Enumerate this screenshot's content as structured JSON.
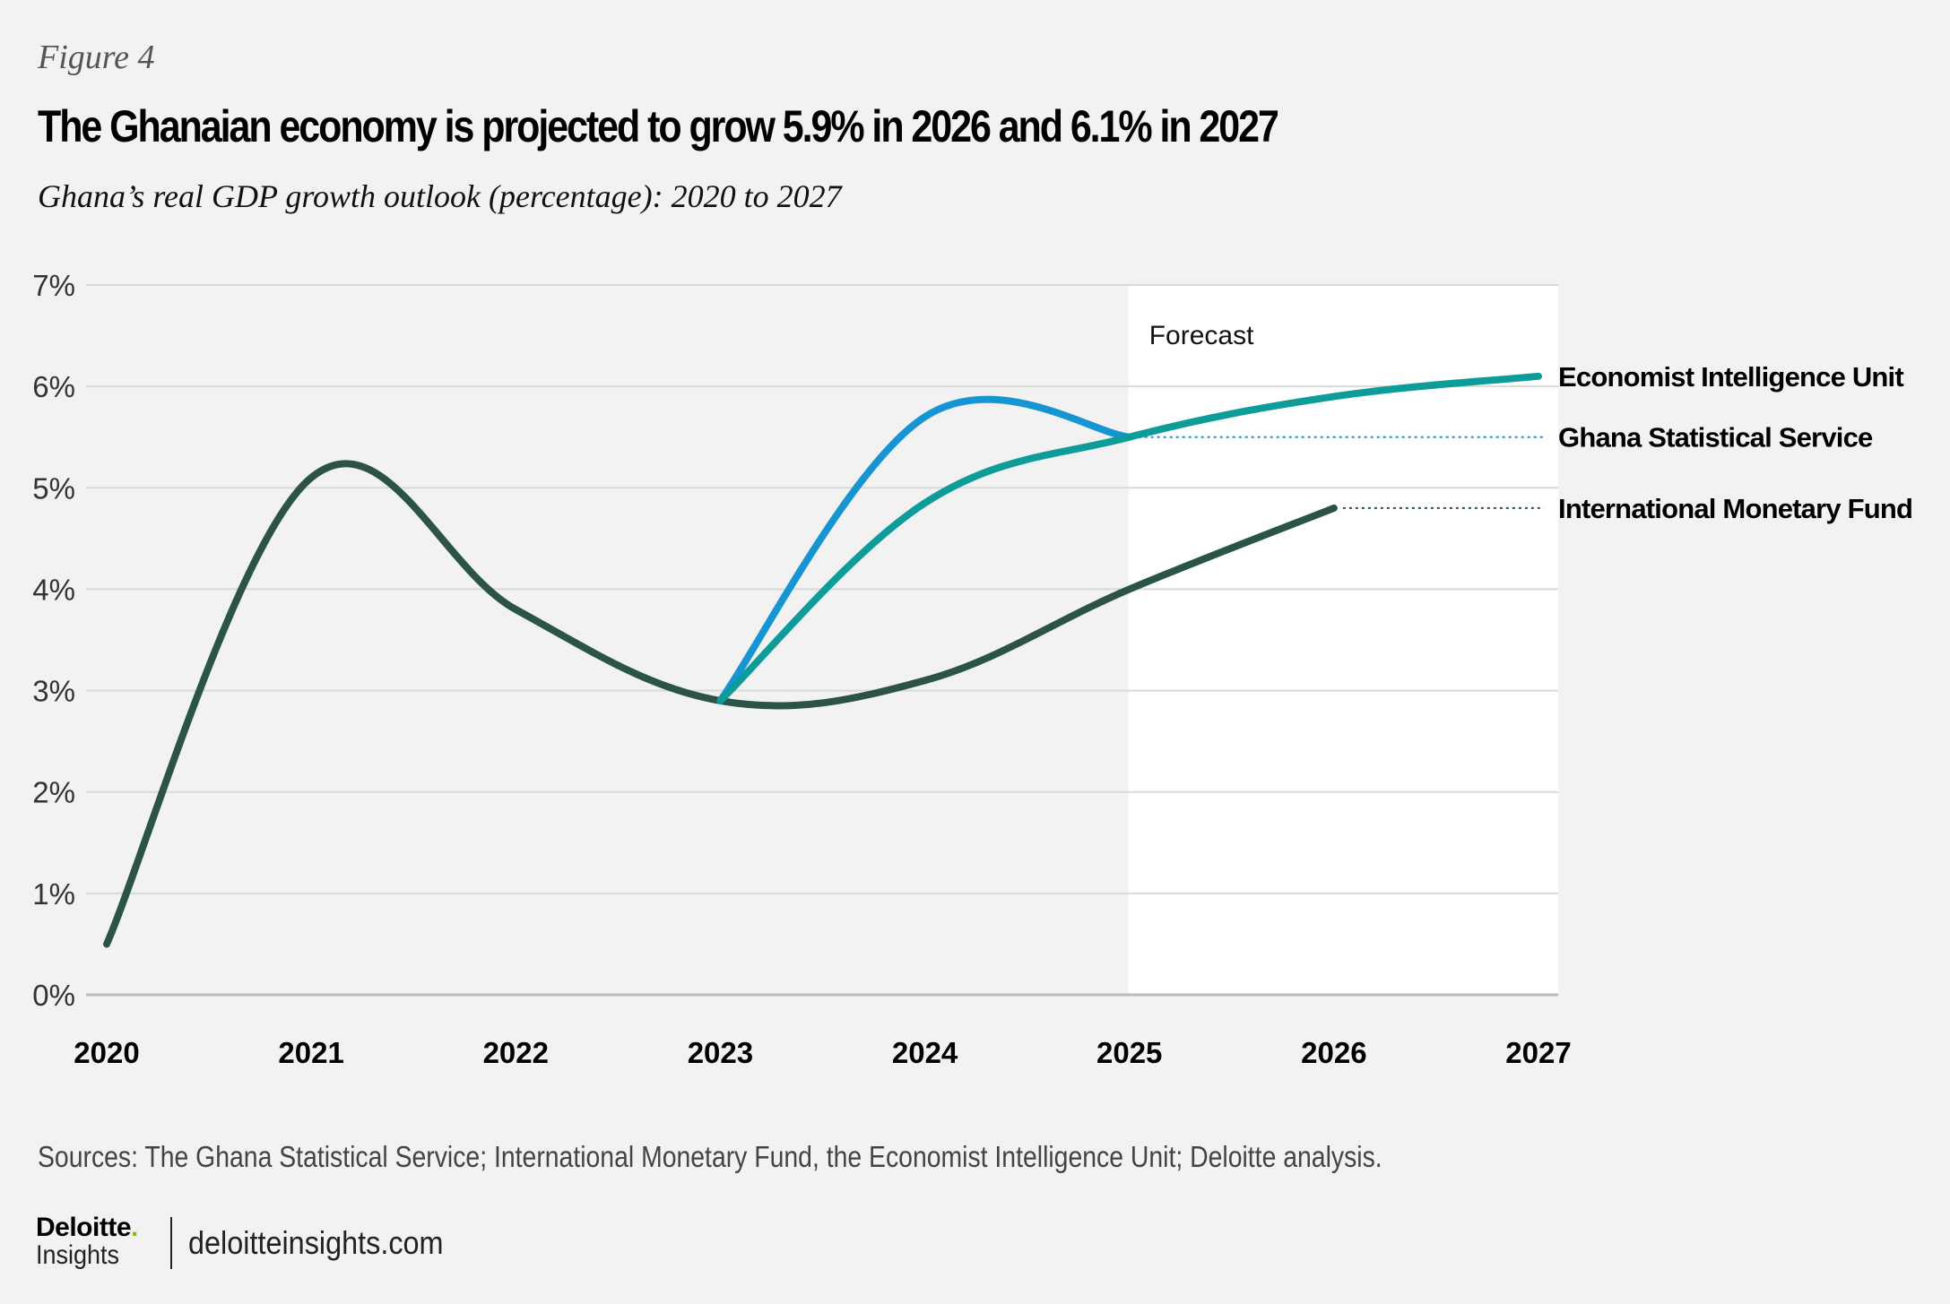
{
  "figure_label": "Figure 4",
  "title": "The Ghanaian economy is projected to grow 5.9% in 2026 and 6.1% in 2027",
  "subtitle": "Ghana’s real GDP growth outlook (percentage): 2020 to 2027",
  "sources": "Sources: The Ghana Statistical Service; International Monetary Fund, the Economist Intelligence Unit; Deloitte analysis.",
  "footer": {
    "brand": "Deloitte",
    "brand_dot": ".",
    "brand_sub": "Insights",
    "site": "deloitteinsights.com",
    "brand_dot_color": "#86bc25"
  },
  "chart_data": {
    "type": "line",
    "title": "Ghana’s real GDP growth outlook (percentage): 2020 to 2027",
    "xlabel": "",
    "ylabel": "",
    "x": [
      2020,
      2021,
      2022,
      2023,
      2024,
      2025,
      2026,
      2027
    ],
    "x_tick_labels": [
      "2020",
      "2021",
      "2022",
      "2023",
      "2024",
      "2025",
      "2026",
      "2027"
    ],
    "ylim": [
      0,
      7
    ],
    "y_ticks": [
      0,
      1,
      2,
      3,
      4,
      5,
      6,
      7
    ],
    "y_tick_labels": [
      "0%",
      "1%",
      "2%",
      "3%",
      "4%",
      "5%",
      "6%",
      "7%"
    ],
    "grid": true,
    "forecast_region": {
      "from": 2025,
      "to": 2027,
      "label": "Forecast"
    },
    "legend_placement": "right (direct labels)",
    "series": [
      {
        "name": "International Monetary Fund",
        "color": "#2b5347",
        "x": [
          2020,
          2021,
          2022,
          2023,
          2024,
          2025,
          2026
        ],
        "values": [
          0.5,
          5.1,
          3.8,
          2.9,
          3.1,
          4.0,
          4.8
        ],
        "leader": "dotted"
      },
      {
        "name": "Ghana Statistical Service",
        "color": "#1795d2",
        "x": [
          2023,
          2024,
          2025
        ],
        "values": [
          2.9,
          5.7,
          5.5
        ],
        "leader": "dotted"
      },
      {
        "name": "Economist Intelligence Unit",
        "color": "#0e9c9b",
        "x": [
          2023,
          2024,
          2025,
          2026,
          2027
        ],
        "values": [
          2.9,
          4.85,
          5.5,
          5.9,
          6.1
        ],
        "leader": "none"
      }
    ]
  }
}
